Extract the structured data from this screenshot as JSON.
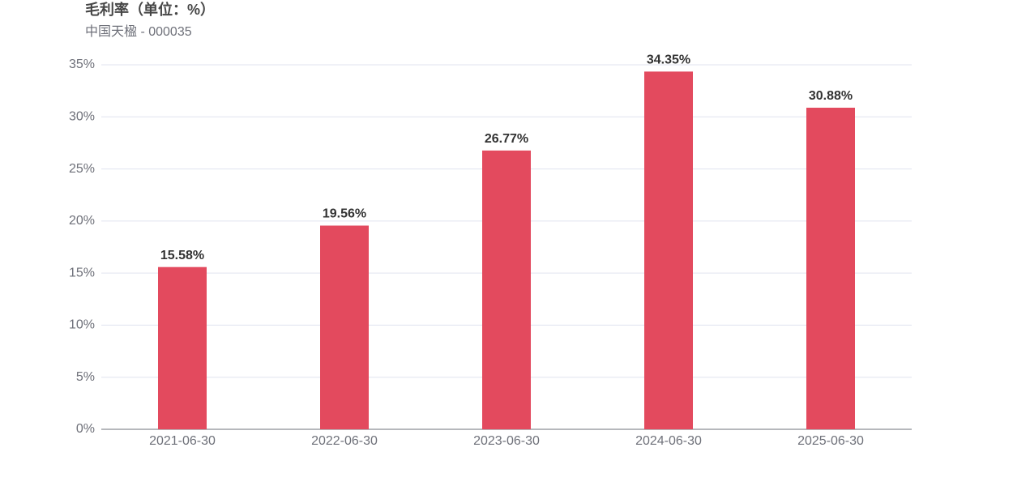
{
  "chart_data": {
    "type": "bar",
    "title": "毛利率（单位：%）",
    "subtitle": "中国天楹 - 000035",
    "categories": [
      "2021-06-30",
      "2022-06-30",
      "2023-06-30",
      "2024-06-30",
      "2025-06-30"
    ],
    "values": [
      15.58,
      19.56,
      26.77,
      34.35,
      30.88
    ],
    "value_labels": [
      "15.58%",
      "19.56%",
      "26.77%",
      "34.35%",
      "30.88%"
    ],
    "color": "#e34a5e",
    "ylim": [
      0,
      35
    ],
    "yticks": [
      {
        "value": 0,
        "label": "0%"
      },
      {
        "value": 5,
        "label": "5%"
      },
      {
        "value": 10,
        "label": "10%"
      },
      {
        "value": 15,
        "label": "15%"
      },
      {
        "value": 20,
        "label": "20%"
      },
      {
        "value": 25,
        "label": "25%"
      },
      {
        "value": 30,
        "label": "30%"
      },
      {
        "value": 35,
        "label": "35%"
      }
    ],
    "grid": true
  }
}
